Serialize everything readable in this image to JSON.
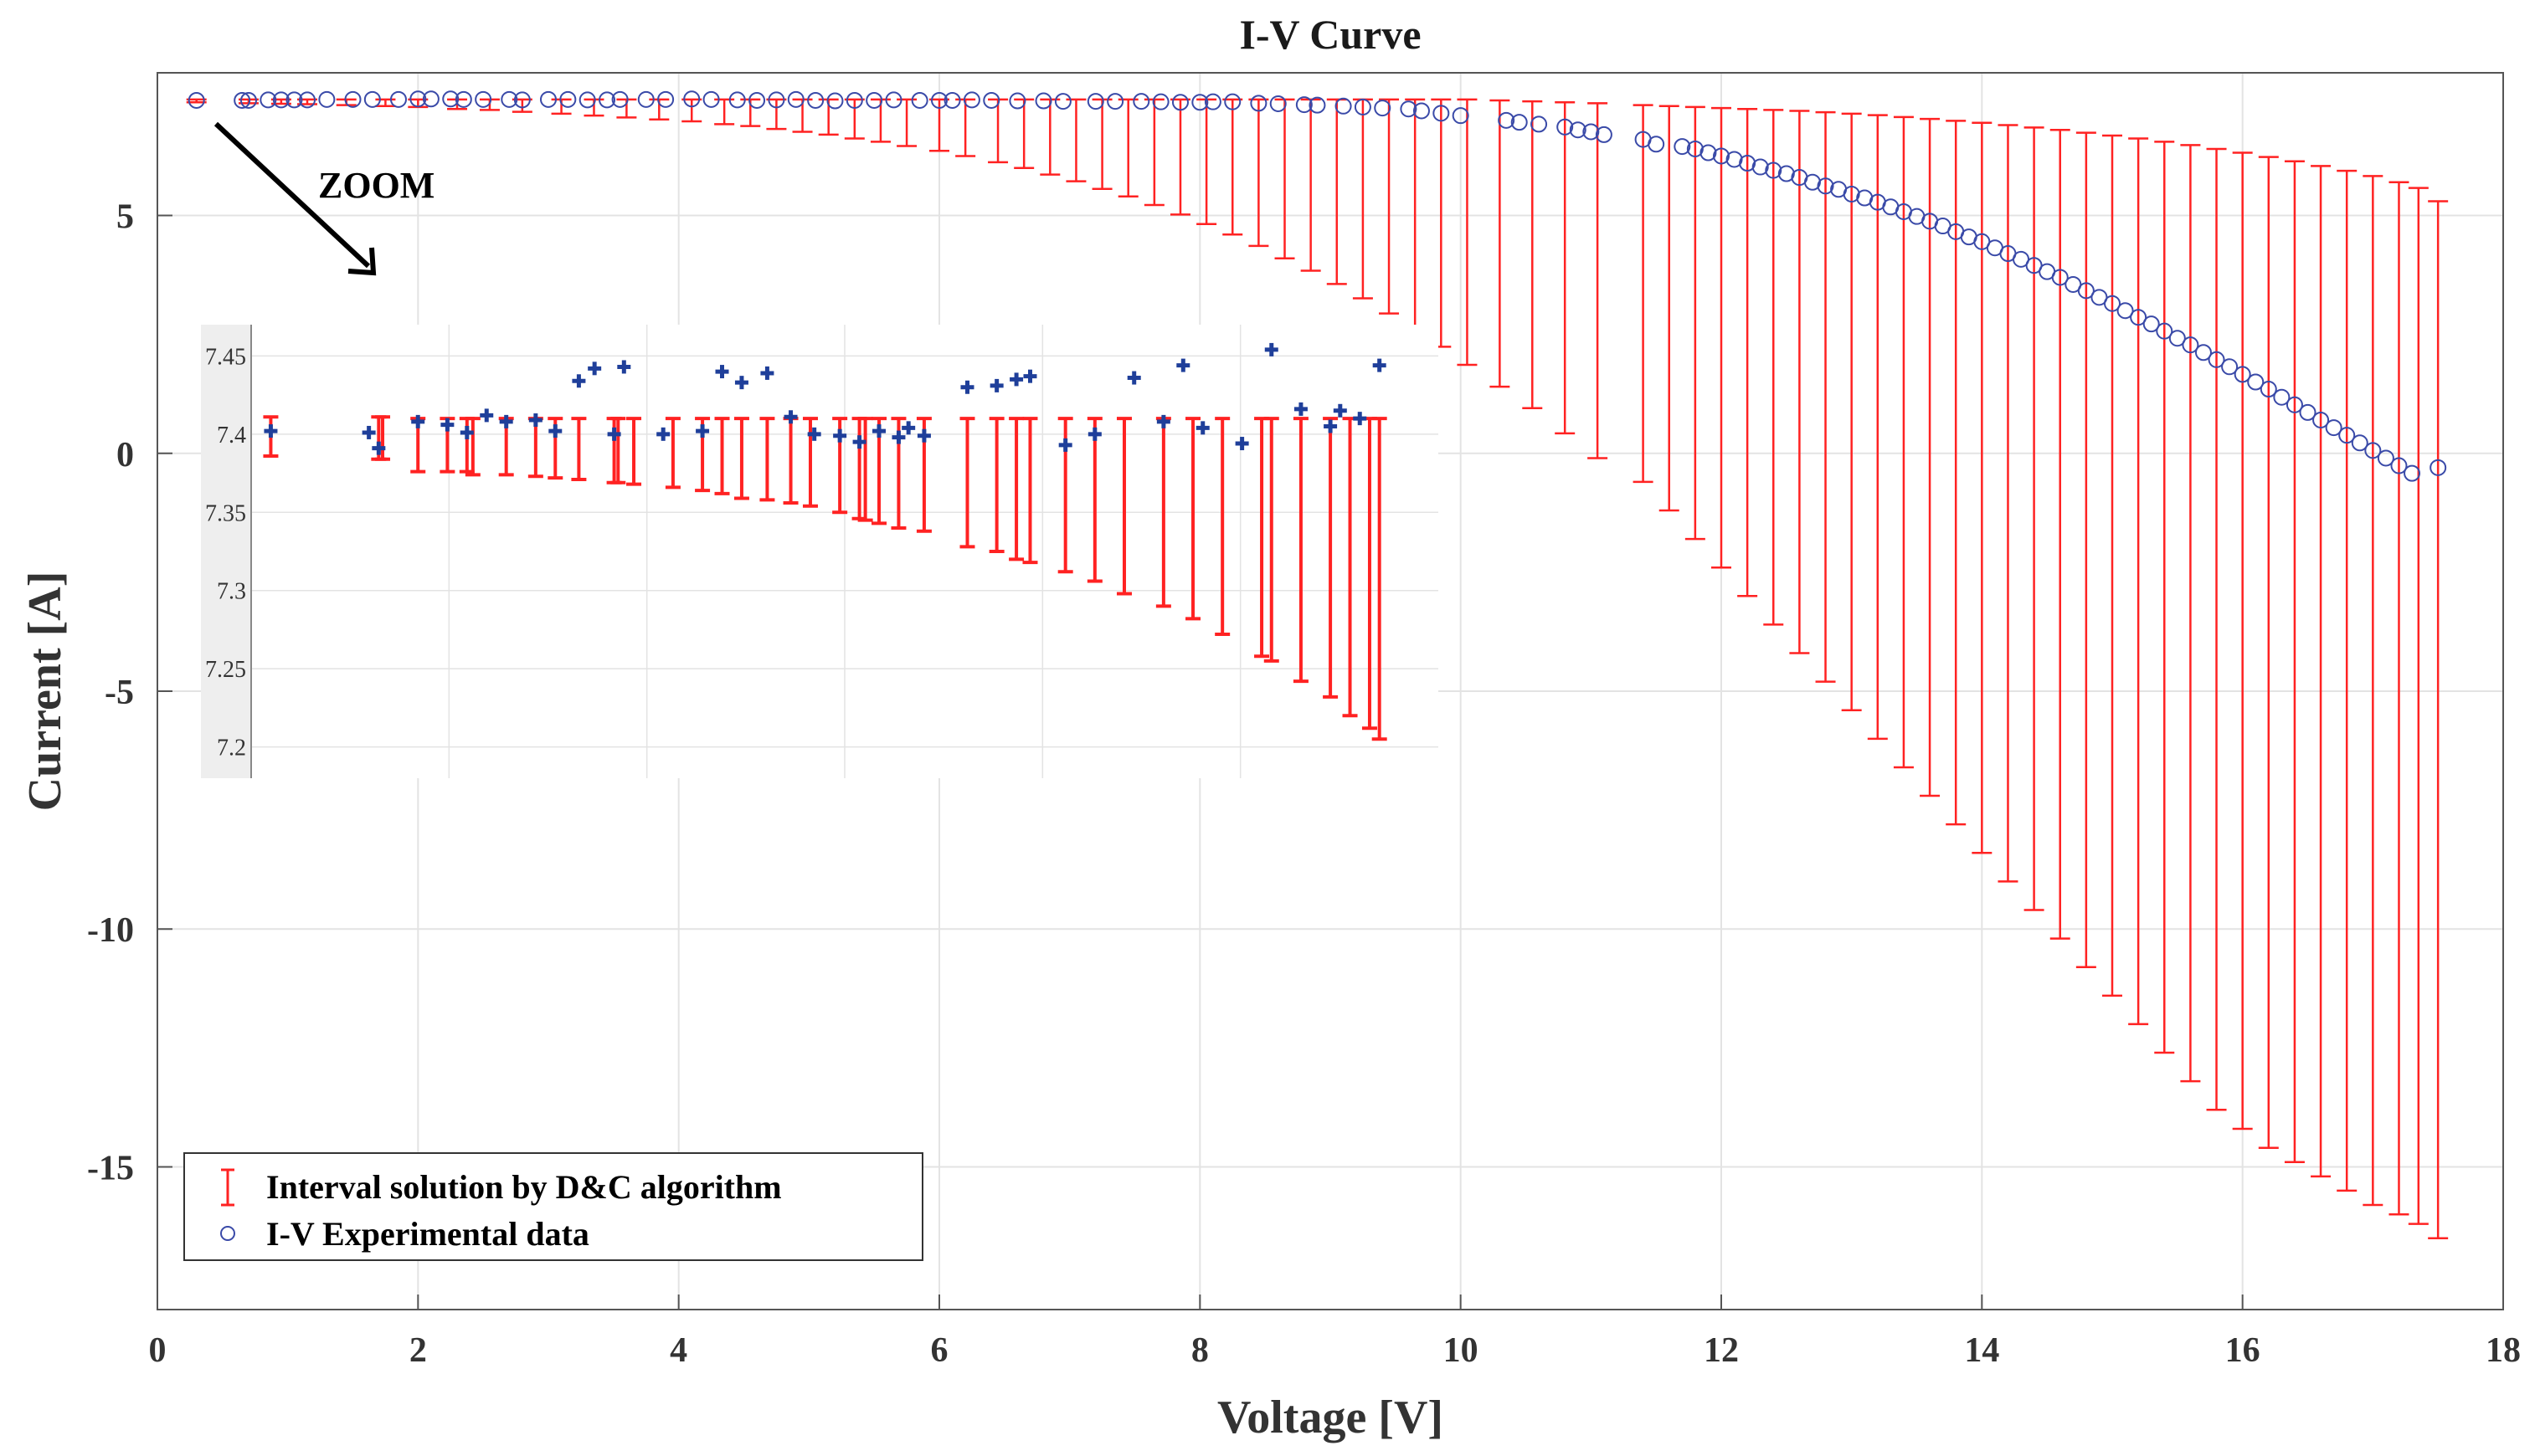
{
  "chart_data": {
    "type": "scatter",
    "title": "I-V Curve",
    "xlabel": "Voltage [V]",
    "ylabel": "Current [A]",
    "xlim": [
      0,
      18
    ],
    "ylim": [
      -18,
      8
    ],
    "xticks": [
      0,
      2,
      4,
      6,
      8,
      10,
      12,
      14,
      16,
      18
    ],
    "yticks": [
      5,
      0,
      -5,
      -10,
      -15
    ],
    "xtick_labels": [
      "0",
      "2",
      "4",
      "6",
      "8",
      "10",
      "12",
      "14",
      "16",
      "18"
    ],
    "ytick_labels": [
      "5",
      "0",
      "-5",
      "-10",
      "-15"
    ],
    "grid": true,
    "colors": {
      "interval": "#ff2222",
      "data": "#3a4aa8",
      "inset_marker": "#1f3f9a",
      "inset_bg": "#eeeeee",
      "grid": "#e3e3e3",
      "axis": "#555555"
    },
    "legend": {
      "position": "bottom-left",
      "entries": [
        {
          "label": "Interval solution by D&C algorithm",
          "marker": "errorbar",
          "color": "#ff2222"
        },
        {
          "label": "I-V Experimental data",
          "marker": "circle",
          "color": "#3a4aa8"
        }
      ]
    },
    "annotation": {
      "text": "ZOOM",
      "arrow_from": [
        0.45,
        7.0
      ],
      "arrow_to": [
        1.7,
        3.8
      ]
    },
    "series": [
      {
        "name": "I-V Experimental data",
        "x": [
          0.3,
          0.65,
          0.7,
          0.85,
          0.95,
          1.05,
          1.15,
          1.3,
          1.5,
          1.65,
          1.85,
          2.0,
          2.1,
          2.25,
          2.35,
          2.5,
          2.7,
          2.8,
          3.0,
          3.15,
          3.3,
          3.45,
          3.55,
          3.75,
          3.9,
          4.1,
          4.25,
          4.45,
          4.6,
          4.75,
          4.9,
          5.05,
          5.2,
          5.35,
          5.5,
          5.65,
          5.85,
          6.0,
          6.1,
          6.25,
          6.4,
          6.6,
          6.8,
          6.95,
          7.2,
          7.35,
          7.55,
          7.7,
          7.85,
          8.0,
          8.1,
          8.25,
          8.45,
          8.6,
          8.8,
          8.9,
          9.1,
          9.25,
          9.4,
          9.6,
          9.7,
          9.85,
          10.0,
          10.35,
          10.45,
          10.6,
          10.8,
          10.9,
          11.0,
          11.1,
          11.4,
          11.5,
          11.7,
          11.8,
          11.9,
          12.0,
          12.1,
          12.2,
          12.3,
          12.4,
          12.5,
          12.6,
          12.7,
          12.8,
          12.9,
          13.0,
          13.1,
          13.2,
          13.3,
          13.4,
          13.5,
          13.6,
          13.7,
          13.8,
          13.9,
          14.0,
          14.1,
          14.2,
          14.3,
          14.4,
          14.5,
          14.6,
          14.7,
          14.8,
          14.9,
          15.0,
          15.1,
          15.2,
          15.3,
          15.4,
          15.5,
          15.6,
          15.7,
          15.8,
          15.9,
          16.0,
          16.1,
          16.2,
          16.3,
          16.4,
          16.5,
          16.6,
          16.7,
          16.8,
          16.9,
          17.0,
          17.1,
          17.2,
          17.3,
          17.5
        ],
        "y": [
          7.42,
          7.42,
          7.42,
          7.43,
          7.43,
          7.43,
          7.43,
          7.44,
          7.44,
          7.44,
          7.44,
          7.45,
          7.45,
          7.45,
          7.44,
          7.44,
          7.44,
          7.43,
          7.44,
          7.44,
          7.43,
          7.43,
          7.44,
          7.44,
          7.44,
          7.45,
          7.44,
          7.43,
          7.42,
          7.43,
          7.44,
          7.42,
          7.41,
          7.42,
          7.42,
          7.43,
          7.42,
          7.42,
          7.42,
          7.43,
          7.42,
          7.41,
          7.41,
          7.4,
          7.4,
          7.4,
          7.4,
          7.39,
          7.38,
          7.38,
          7.39,
          7.39,
          7.36,
          7.35,
          7.33,
          7.32,
          7.3,
          7.28,
          7.26,
          7.24,
          7.2,
          7.15,
          7.1,
          7.0,
          6.96,
          6.92,
          6.86,
          6.8,
          6.76,
          6.7,
          6.6,
          6.5,
          6.45,
          6.4,
          6.32,
          6.25,
          6.18,
          6.1,
          6.02,
          5.95,
          5.88,
          5.8,
          5.7,
          5.62,
          5.55,
          5.45,
          5.37,
          5.28,
          5.18,
          5.08,
          4.98,
          4.88,
          4.78,
          4.66,
          4.55,
          4.45,
          4.32,
          4.2,
          4.08,
          3.95,
          3.82,
          3.7,
          3.55,
          3.42,
          3.28,
          3.15,
          3.0,
          2.86,
          2.72,
          2.57,
          2.42,
          2.28,
          2.12,
          1.97,
          1.82,
          1.66,
          1.5,
          1.35,
          1.18,
          1.02,
          0.86,
          0.7,
          0.54,
          0.38,
          0.22,
          0.06,
          -0.1,
          -0.26,
          -0.42,
          -0.3
        ]
      },
      {
        "name": "Interval solution by D&C algorithm",
        "x": [
          0.3,
          0.7,
          0.95,
          1.15,
          1.45,
          1.75,
          2.0,
          2.3,
          2.55,
          2.8,
          3.1,
          3.35,
          3.6,
          3.85,
          4.1,
          4.35,
          4.55,
          4.75,
          4.95,
          5.15,
          5.35,
          5.55,
          5.75,
          6.0,
          6.2,
          6.45,
          6.65,
          6.85,
          7.05,
          7.25,
          7.45,
          7.65,
          7.85,
          8.05,
          8.25,
          8.45,
          8.65,
          8.85,
          9.05,
          9.25,
          9.45,
          9.65,
          9.85,
          10.05,
          10.3,
          10.55,
          10.8,
          11.05,
          11.4,
          11.6,
          11.8,
          12.0,
          12.2,
          12.4,
          12.6,
          12.8,
          13.0,
          13.2,
          13.4,
          13.6,
          13.8,
          14.0,
          14.2,
          14.4,
          14.6,
          14.8,
          15.0,
          15.2,
          15.4,
          15.6,
          15.8,
          16.0,
          16.2,
          16.4,
          16.6,
          16.8,
          17.0,
          17.2,
          17.35,
          17.5
        ],
        "upper": [
          7.44,
          7.44,
          7.44,
          7.44,
          7.44,
          7.44,
          7.44,
          7.44,
          7.44,
          7.44,
          7.44,
          7.44,
          7.44,
          7.44,
          7.44,
          7.44,
          7.44,
          7.44,
          7.44,
          7.44,
          7.44,
          7.44,
          7.44,
          7.44,
          7.44,
          7.44,
          7.44,
          7.44,
          7.44,
          7.44,
          7.44,
          7.44,
          7.44,
          7.44,
          7.44,
          7.44,
          7.44,
          7.44,
          7.44,
          7.44,
          7.44,
          7.44,
          7.44,
          7.44,
          7.42,
          7.4,
          7.38,
          7.36,
          7.32,
          7.3,
          7.28,
          7.26,
          7.24,
          7.22,
          7.2,
          7.17,
          7.14,
          7.11,
          7.07,
          7.03,
          6.99,
          6.95,
          6.9,
          6.85,
          6.8,
          6.74,
          6.68,
          6.62,
          6.55,
          6.48,
          6.4,
          6.32,
          6.23,
          6.14,
          6.04,
          5.94,
          5.83,
          5.7,
          5.58,
          5.3
        ],
        "lower": [
          7.38,
          7.36,
          7.35,
          7.34,
          7.32,
          7.3,
          7.28,
          7.24,
          7.22,
          7.18,
          7.14,
          7.1,
          7.06,
          7.02,
          6.98,
          6.92,
          6.88,
          6.82,
          6.76,
          6.7,
          6.62,
          6.55,
          6.46,
          6.36,
          6.25,
          6.12,
          6.0,
          5.86,
          5.72,
          5.56,
          5.4,
          5.22,
          5.02,
          4.82,
          4.6,
          4.36,
          4.1,
          3.84,
          3.56,
          3.26,
          2.94,
          2.6,
          2.24,
          1.86,
          1.4,
          0.95,
          0.42,
          -0.1,
          -0.6,
          -1.2,
          -1.8,
          -2.4,
          -3.0,
          -3.6,
          -4.2,
          -4.8,
          -5.4,
          -6.0,
          -6.6,
          -7.2,
          -7.8,
          -8.4,
          -9.0,
          -9.6,
          -10.2,
          -10.8,
          -11.4,
          -12.0,
          -12.6,
          -13.2,
          -13.8,
          -14.2,
          -14.6,
          -14.9,
          -15.2,
          -15.5,
          -15.8,
          -16.0,
          -16.2,
          -16.5
        ]
      }
    ],
    "inset": {
      "xlim": [
        0.25,
        6.3
      ],
      "ylim": [
        7.18,
        7.47
      ],
      "yticks": [
        7.45,
        7.4,
        7.35,
        7.3,
        7.25,
        7.2
      ],
      "ytick_labels": [
        "7.45",
        "7.4",
        "7.35",
        "7.3",
        "7.25",
        "7.2"
      ],
      "points_x": [
        0.35,
        0.85,
        0.9,
        1.1,
        1.25,
        1.35,
        1.45,
        1.55,
        1.7,
        1.8,
        1.92,
        2.0,
        2.1,
        2.15,
        2.35,
        2.55,
        2.65,
        2.75,
        2.88,
        3.0,
        3.12,
        3.25,
        3.35,
        3.45,
        3.55,
        3.6,
        3.68,
        3.9,
        4.05,
        4.15,
        4.22,
        4.4,
        4.55,
        4.75,
        4.9,
        5.0,
        5.1,
        5.3,
        5.45,
        5.6,
        5.75,
        5.8,
        5.9,
        6.0
      ],
      "points_y": [
        7.402,
        7.401,
        7.391,
        7.408,
        7.406,
        7.401,
        7.412,
        7.408,
        7.409,
        7.402,
        7.434,
        7.442,
        7.4,
        7.443,
        7.4,
        7.402,
        7.44,
        7.433,
        7.439,
        7.411,
        7.4,
        7.399,
        7.395,
        7.402,
        7.398,
        7.404,
        7.399,
        7.43,
        7.431,
        7.435,
        7.437,
        7.393,
        7.4,
        7.436,
        7.408,
        7.444,
        7.404,
        7.394,
        7.454,
        7.416,
        7.405,
        7.415,
        7.41,
        7.444
      ],
      "bars_x": [
        0.35,
        0.9,
        0.92,
        1.1,
        1.25,
        1.35,
        1.38,
        1.55,
        1.7,
        1.8,
        1.92,
        2.1,
        2.12,
        2.2,
        2.4,
        2.55,
        2.65,
        2.75,
        2.88,
        3.0,
        3.1,
        3.25,
        3.35,
        3.38,
        3.45,
        3.55,
        3.68,
        3.9,
        4.05,
        4.15,
        4.22,
        4.4,
        4.55,
        4.7,
        4.9,
        5.05,
        5.2,
        5.4,
        5.45,
        5.6,
        5.75,
        5.85,
        5.95,
        6.0
      ],
      "bars_upper": [
        7.411,
        7.411,
        7.411,
        7.41,
        7.41,
        7.41,
        7.41,
        7.41,
        7.41,
        7.41,
        7.41,
        7.41,
        7.41,
        7.41,
        7.41,
        7.41,
        7.41,
        7.41,
        7.41,
        7.41,
        7.41,
        7.41,
        7.41,
        7.41,
        7.41,
        7.41,
        7.41,
        7.41,
        7.41,
        7.41,
        7.41,
        7.41,
        7.41,
        7.41,
        7.41,
        7.41,
        7.41,
        7.41,
        7.41,
        7.41,
        7.41,
        7.41,
        7.41,
        7.41
      ],
      "bars_lower": [
        7.386,
        7.384,
        7.384,
        7.376,
        7.376,
        7.376,
        7.374,
        7.374,
        7.373,
        7.372,
        7.371,
        7.369,
        7.369,
        7.368,
        7.366,
        7.364,
        7.362,
        7.359,
        7.358,
        7.356,
        7.354,
        7.35,
        7.346,
        7.345,
        7.343,
        7.34,
        7.338,
        7.328,
        7.325,
        7.32,
        7.318,
        7.312,
        7.306,
        7.298,
        7.29,
        7.282,
        7.272,
        7.258,
        7.255,
        7.242,
        7.232,
        7.22,
        7.212,
        7.205
      ]
    }
  }
}
